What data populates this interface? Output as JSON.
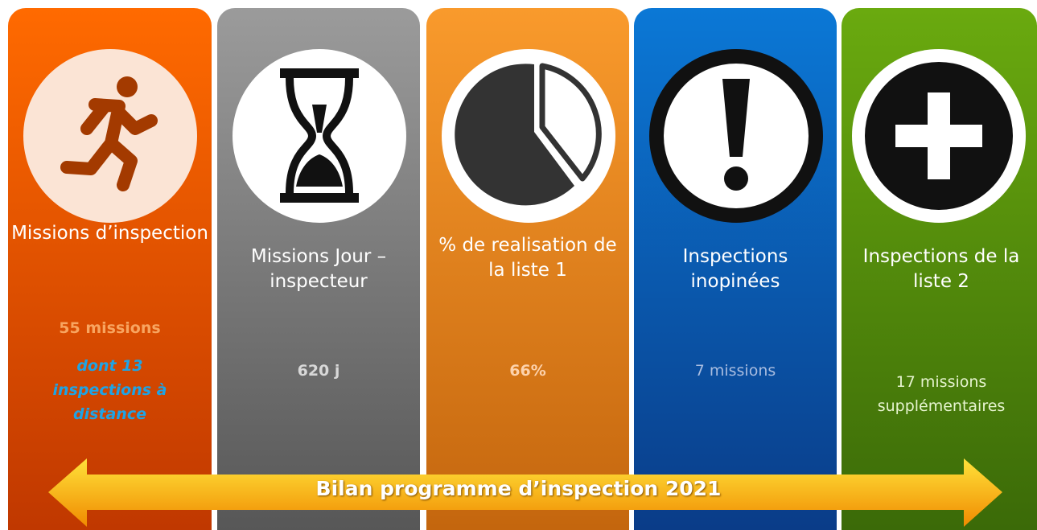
{
  "panels": [
    {
      "title": "Missions d’inspection",
      "stat": "55 missions",
      "detail": "dont 13 inspections à distance"
    },
    {
      "title": "Missions Jour – inspecteur",
      "stat": "620 j"
    },
    {
      "title": "% de realisation de la liste 1",
      "stat": "66%"
    },
    {
      "title": "Inspections inopinées",
      "stat": "7 missions"
    },
    {
      "title": "Inspections de la liste 2",
      "stat": "17 missions supplémentaires"
    }
  ],
  "banner": "Bilan programme d’inspection 2021"
}
